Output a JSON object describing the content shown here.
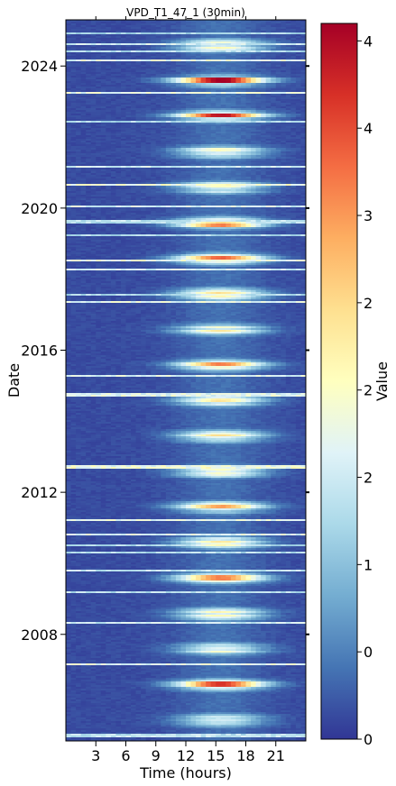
{
  "chart_data": {
    "type": "heatmap",
    "title": "VPD_T1_47_1 (30min)",
    "xlabel": "Time (hours)",
    "ylabel": "Date",
    "colorbar_label": "Value",
    "x_range": [
      0,
      24
    ],
    "x_ticks": [
      3,
      6,
      9,
      12,
      15,
      18,
      21
    ],
    "x_tick_labels": [
      "3",
      "6",
      "9",
      "12",
      "15",
      "18",
      "21"
    ],
    "y_range_years": [
      2005.0,
      2025.3
    ],
    "y_ticks": [
      2008,
      2012,
      2016,
      2020,
      2024
    ],
    "y_tick_labels": [
      "2008",
      "2012",
      "2016",
      "2020",
      "2024"
    ],
    "colorbar_range": [
      0,
      4.1
    ],
    "colorbar_ticks": [
      0,
      0.5,
      1,
      1.5,
      2,
      2.5,
      3,
      3.5,
      4
    ],
    "colorbar_tick_labels": [
      "0",
      "0",
      "1",
      "2",
      "2",
      "2",
      "3",
      "4",
      "4"
    ],
    "colormap": [
      "#313695",
      "#4575b4",
      "#74add1",
      "#abd9e9",
      "#e0f3f8",
      "#ffffbf",
      "#fee090",
      "#fdae61",
      "#f46d43",
      "#d73027",
      "#a50026"
    ],
    "summer_peak_rows": [
      {
        "year": 2023.6,
        "peak": 4.0
      },
      {
        "year": 2022.6,
        "peak": 3.8
      },
      {
        "year": 2018.6,
        "peak": 3.2
      },
      {
        "year": 2019.5,
        "peak": 3.0
      },
      {
        "year": 2015.6,
        "peak": 3.0
      },
      {
        "year": 2006.6,
        "peak": 3.5
      },
      {
        "year": 2009.6,
        "peak": 3.0
      },
      {
        "year": 2011.6,
        "peak": 2.8
      }
    ]
  }
}
